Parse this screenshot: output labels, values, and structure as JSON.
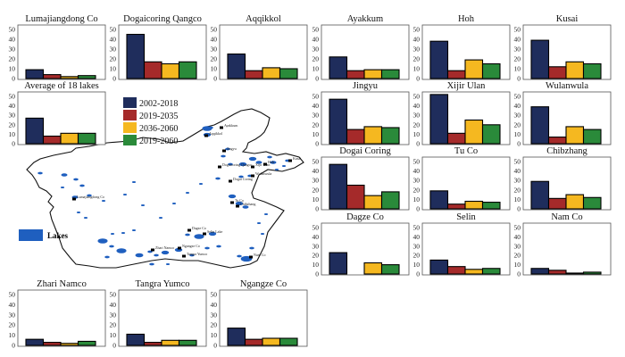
{
  "figure": {
    "series_colors": {
      "2002-2018": "#1f2d5c",
      "2019-2035": "#a52a2a",
      "2036-2060": "#f5b820",
      "2019-2060": "#2a8a3a"
    },
    "map": {
      "legend_label": "Lakes",
      "lake_color": "#1f5fbf",
      "lake_labels": [
        "Lumajiangdong Co",
        "Ayakkum",
        "Aqqikkol",
        "Jingyu",
        "Dogaicoring Qangco",
        "Xijir Ulan",
        "Hoh",
        "Kusai",
        "Wulanwula",
        "Dogai Coring",
        "Tu Co",
        "Chibzhang",
        "Dagze Co",
        "Selin Lake",
        "Zhari Namco",
        "Ngangze Co",
        "Tangra Yumco",
        "Nam Co"
      ]
    }
  },
  "chart_data": {
    "type": "bar",
    "series_names": [
      "2002-2018",
      "2019-2035",
      "2036-2060",
      "2019-2060"
    ],
    "ylim": [
      0,
      50
    ],
    "yticks": [
      "0",
      "10",
      "20",
      "30",
      "40",
      "50"
    ],
    "legend_placement": "center-left",
    "panels": [
      {
        "title": "Lumajiangdong Co",
        "values": [
          9,
          4,
          2,
          3
        ]
      },
      {
        "title": "Dogaicoring Qangco",
        "values": [
          45,
          17,
          15,
          17
        ]
      },
      {
        "title": "Aqqikkol",
        "values": [
          25,
          8,
          11,
          10
        ]
      },
      {
        "title": "Ayakkum",
        "values": [
          22,
          8,
          9,
          9
        ]
      },
      {
        "title": "Hoh",
        "values": [
          38,
          8,
          19,
          15
        ]
      },
      {
        "title": "Kusai",
        "values": [
          39,
          12,
          17,
          15
        ]
      },
      {
        "title": "Average of 18 lakes",
        "values": [
          27,
          8,
          11,
          11
        ]
      },
      {
        "title": "Jingyu",
        "values": [
          47,
          15,
          18,
          17
        ]
      },
      {
        "title": "Xijir Ulan",
        "values": [
          52,
          11,
          25,
          20
        ]
      },
      {
        "title": "Wulanwula",
        "values": [
          39,
          7,
          18,
          15
        ]
      },
      {
        "title": "Dogai Coring",
        "values": [
          47,
          25,
          14,
          18
        ]
      },
      {
        "title": "Tu Co",
        "values": [
          19,
          5,
          8,
          7
        ]
      },
      {
        "title": "Chibzhang",
        "values": [
          29,
          11,
          15,
          12
        ]
      },
      {
        "title": "Dagze Co",
        "values": [
          23,
          0,
          12,
          10
        ]
      },
      {
        "title": "Selin",
        "values": [
          15,
          8,
          5,
          6
        ]
      },
      {
        "title": "Nam Co",
        "values": [
          6,
          4,
          1,
          2
        ]
      },
      {
        "title": "Zhari Namco",
        "values": [
          6,
          3,
          2,
          4
        ]
      },
      {
        "title": "Tangra Yumco",
        "values": [
          11,
          3,
          5,
          5
        ]
      },
      {
        "title": "Ngangze Co",
        "values": [
          17,
          6,
          7,
          7
        ]
      }
    ]
  }
}
